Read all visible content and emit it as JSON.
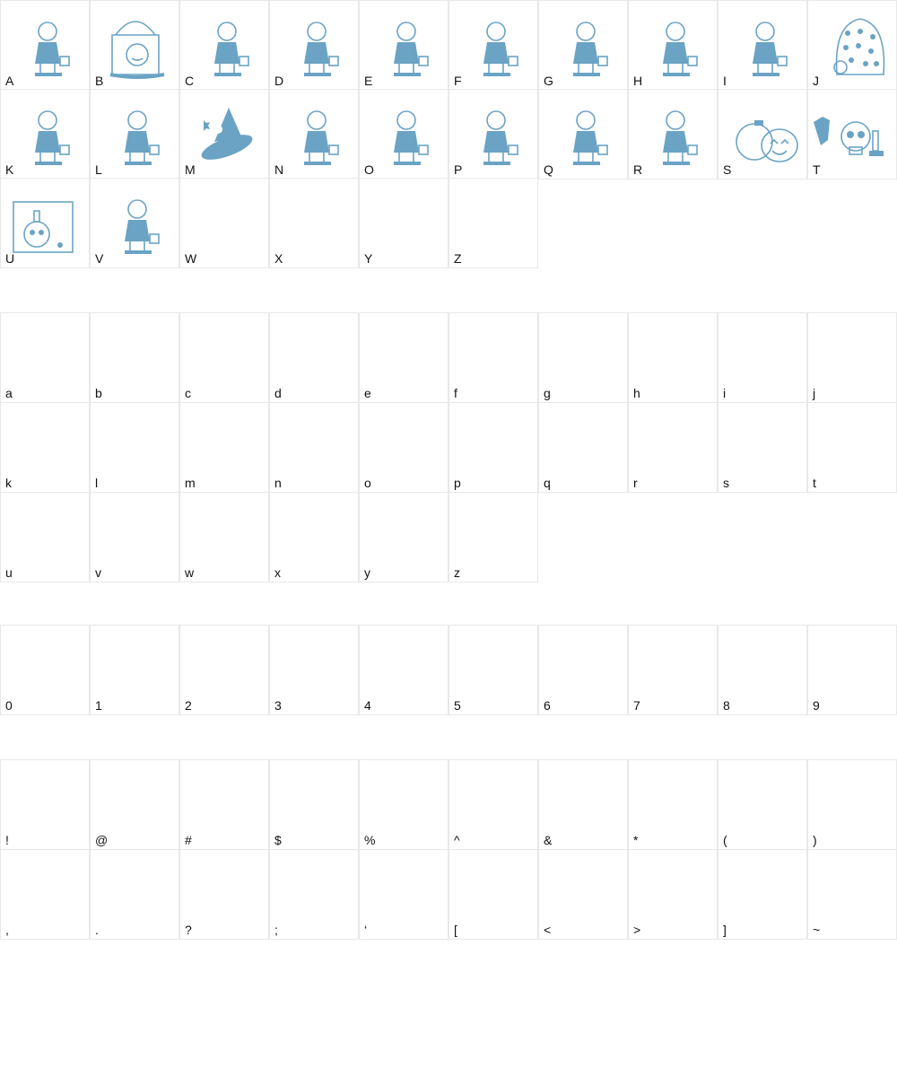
{
  "glyph_color": "#6aa3c4",
  "sections": [
    {
      "name": "uppercase",
      "chars": [
        "A",
        "B",
        "C",
        "D",
        "E",
        "F",
        "G",
        "H",
        "I",
        "J",
        "K",
        "L",
        "M",
        "N",
        "O",
        "P",
        "Q",
        "R",
        "S",
        "T",
        "U",
        "V",
        "W",
        "X",
        "Y",
        "Z"
      ],
      "glyphs": [
        "girl-bonnet",
        "treat-bag-pumpkin",
        "boy-cap-bag",
        "boy-walking",
        "boy-hat-bag",
        "cat-costume-bag",
        "devil-trident",
        "devil-bag",
        "vampire",
        "ghost-stars",
        "girl-cape",
        "witch-bag",
        "witch-hat-moon",
        "native-costume-bag",
        "girl-flower-hat",
        "girl-hat-bag",
        "angel-girl",
        "fairy-girl",
        "pumpkins",
        "raven-skull-candle",
        "skull-candle-frame",
        "witch-girl",
        "",
        "",
        "",
        ""
      ]
    },
    {
      "name": "lowercase",
      "chars": [
        "a",
        "b",
        "c",
        "d",
        "e",
        "f",
        "g",
        "h",
        "i",
        "j",
        "k",
        "l",
        "m",
        "n",
        "o",
        "p",
        "q",
        "r",
        "s",
        "t",
        "u",
        "v",
        "w",
        "x",
        "y",
        "z"
      ]
    },
    {
      "name": "digits",
      "chars": [
        "0",
        "1",
        "2",
        "3",
        "4",
        "5",
        "6",
        "7",
        "8",
        "9"
      ]
    },
    {
      "name": "symbols",
      "chars": [
        "!",
        "@",
        "#",
        "$",
        "%",
        "^",
        "&",
        "*",
        "(",
        ")",
        ",",
        ".",
        "?",
        ";",
        "‘",
        "[",
        "<",
        ">",
        "]",
        "~"
      ]
    }
  ]
}
